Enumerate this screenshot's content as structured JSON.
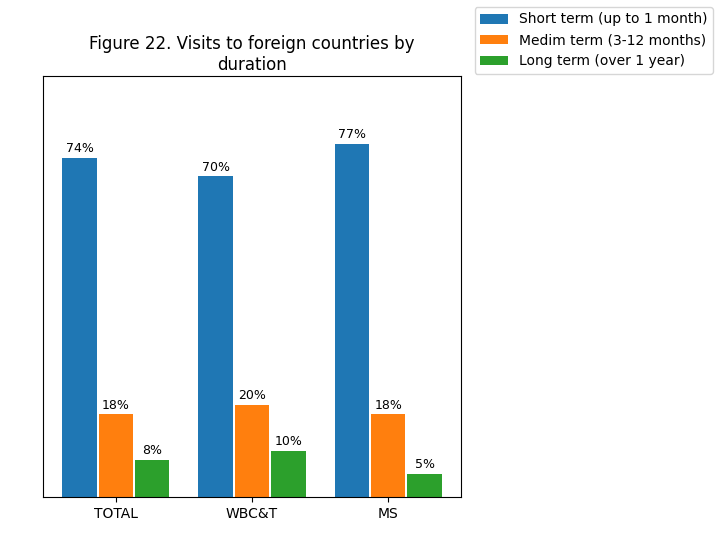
{
  "chart_data": {
    "type": "bar",
    "title": "Figure 22. Visits to foreign countries by\nduration",
    "categories": [
      "TOTAL",
      "WBC&T",
      "MS"
    ],
    "series": [
      {
        "name": "Short term (up to 1 month)",
        "values": [
          74,
          70,
          77
        ],
        "value_labels": [
          "74%",
          "70%",
          "77%"
        ]
      },
      {
        "name": "Medim term (3-12 months)",
        "values": [
          18,
          20,
          18
        ],
        "value_labels": [
          "18%",
          "20%",
          "18%"
        ]
      },
      {
        "name": "Long term (over 1 year)",
        "values": [
          8,
          10,
          5
        ],
        "value_labels": [
          "8%",
          "10%",
          "5%"
        ]
      }
    ],
    "ylim": [
      0,
      92
    ],
    "tick_labels": "x",
    "data_labels": true,
    "legend": "upper right",
    "grid": false
  }
}
